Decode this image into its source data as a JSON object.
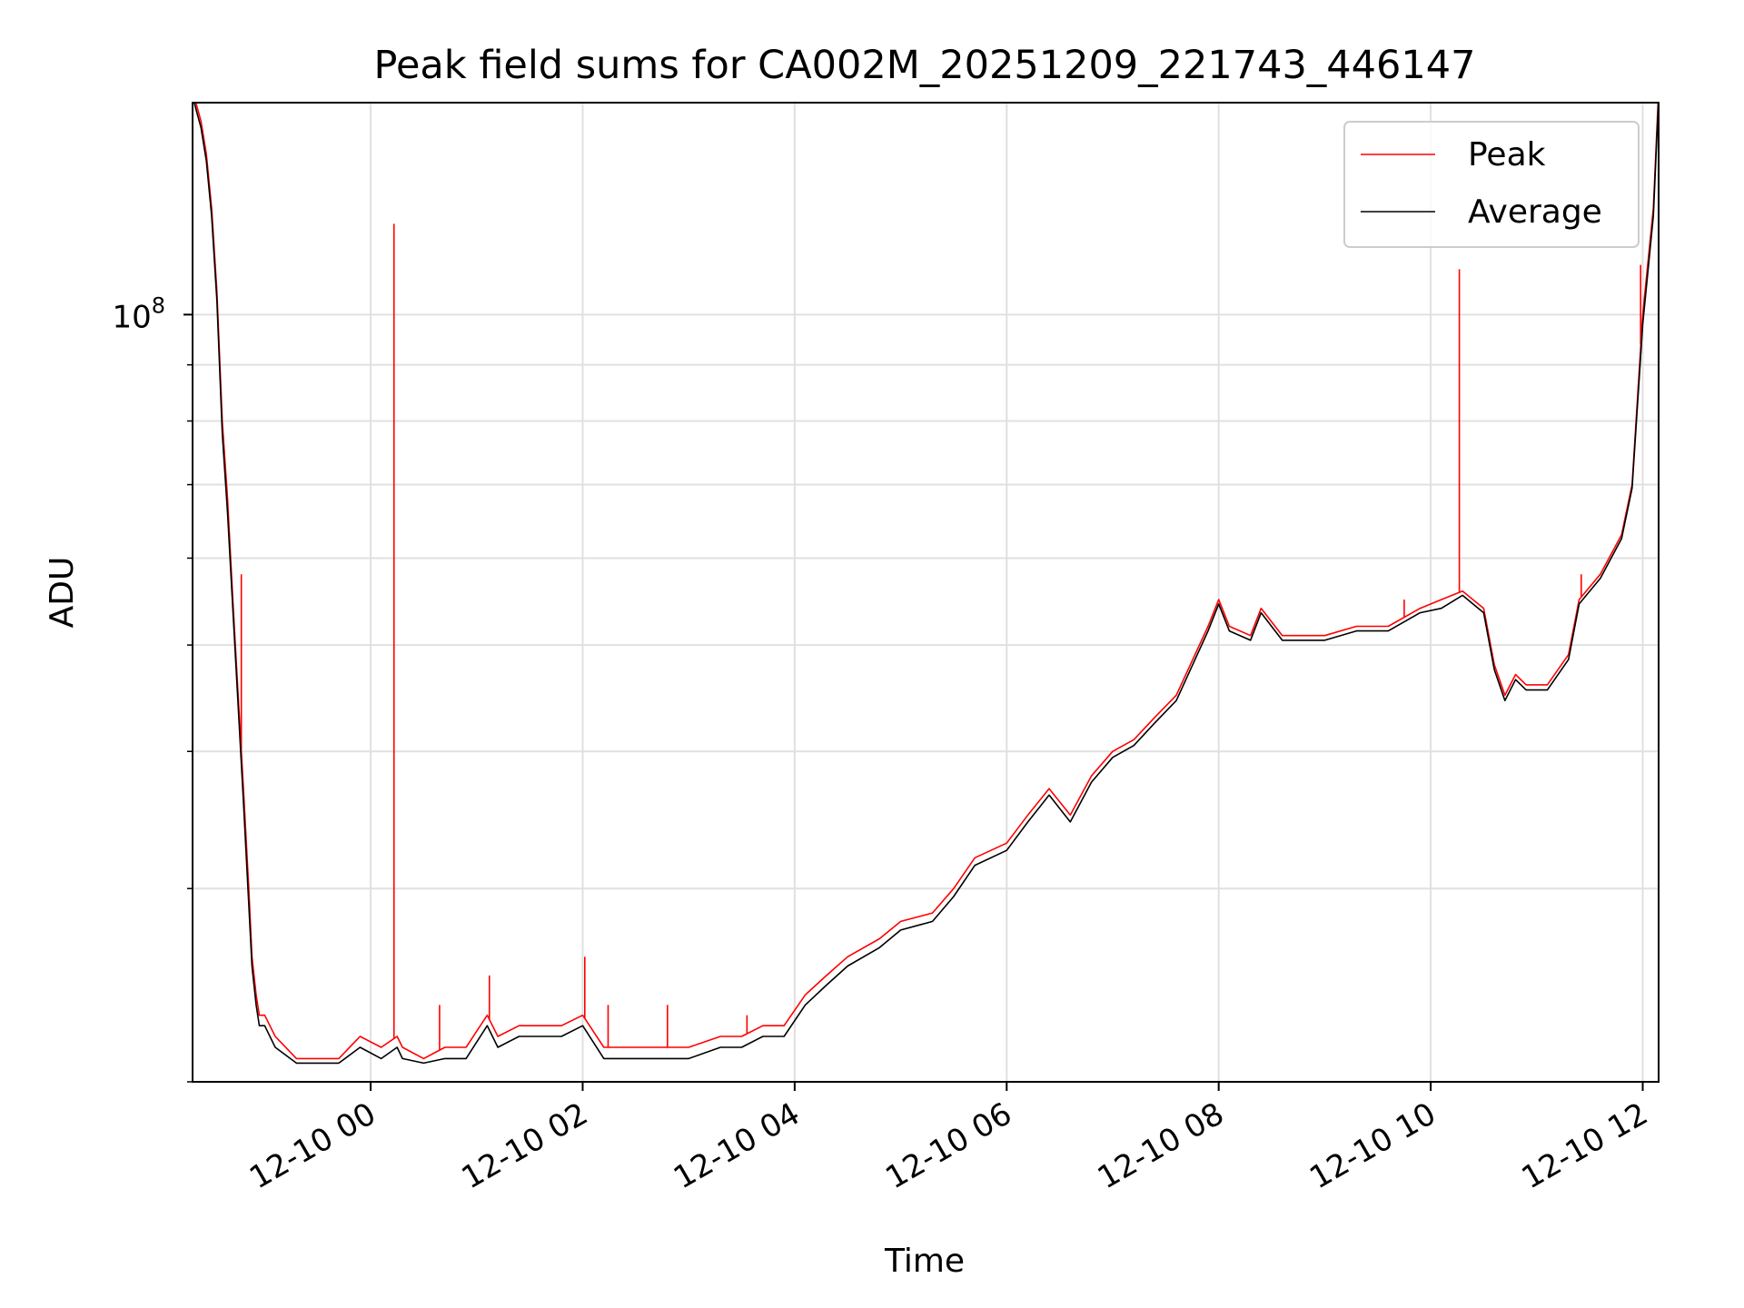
{
  "chart_data": {
    "type": "line",
    "title": "Peak field sums for CA002M_20251209_221743_446147",
    "xlabel": "Time",
    "ylabel": "ADU",
    "yscale": "log",
    "ylim": [
      20000000,
      156000000
    ],
    "xlim_hours": [
      -1.68,
      12.15
    ],
    "x_unit": "hours relative to 2025-12-10 00:00",
    "x_ticks": [
      {
        "hour": 0,
        "label": "12-10 00"
      },
      {
        "hour": 2,
        "label": "12-10 02"
      },
      {
        "hour": 4,
        "label": "12-10 04"
      },
      {
        "hour": 6,
        "label": "12-10 06"
      },
      {
        "hour": 8,
        "label": "12-10 08"
      },
      {
        "hour": 10,
        "label": "12-10 10"
      },
      {
        "hour": 12,
        "label": "12-10 12"
      }
    ],
    "y_major_ticks": [
      {
        "value": 100000000,
        "base": "10",
        "exp": "8"
      }
    ],
    "y_minor_ticks": [
      20000000,
      30000000,
      40000000,
      50000000,
      60000000,
      70000000,
      80000000,
      90000000
    ],
    "grid": true,
    "legend_position": "top-right",
    "series": [
      {
        "name": "Peak",
        "color": "#ff0000",
        "x": [
          -1.68,
          -1.6,
          -1.55,
          -1.5,
          -1.45,
          -1.4,
          -1.35,
          -1.3,
          -1.25,
          -1.2,
          -1.15,
          -1.12,
          -1.08,
          -1.05,
          -1.0,
          -0.9,
          -0.7,
          -0.5,
          -0.3,
          -0.1,
          0.1,
          0.25,
          0.3,
          0.5,
          0.7,
          0.9,
          1.1,
          1.2,
          1.4,
          1.6,
          1.8,
          2.0,
          2.2,
          2.5,
          2.8,
          3.0,
          3.3,
          3.5,
          3.7,
          3.9,
          4.1,
          4.3,
          4.5,
          4.8,
          5.0,
          5.3,
          5.5,
          5.7,
          6.0,
          6.2,
          6.4,
          6.6,
          6.8,
          7.0,
          7.2,
          7.4,
          7.6,
          7.9,
          8.0,
          8.1,
          8.3,
          8.4,
          8.6,
          8.8,
          9.0,
          9.3,
          9.6,
          9.9,
          10.1,
          10.3,
          10.5,
          10.6,
          10.7,
          10.8,
          10.9,
          11.1,
          11.3,
          11.4,
          11.6,
          11.8,
          11.9,
          12.0,
          12.1,
          12.15
        ],
        "y": [
          160000000,
          150000000,
          140000000,
          125000000,
          105000000,
          80000000,
          68000000,
          55000000,
          45000000,
          37000000,
          30000000,
          26000000,
          24000000,
          23000000,
          23000000,
          22000000,
          21000000,
          21000000,
          21000000,
          22000000,
          21500000,
          22000000,
          21500000,
          21000000,
          21500000,
          21500000,
          23000000,
          22000000,
          22500000,
          22500000,
          22500000,
          23000000,
          21500000,
          21500000,
          21500000,
          21500000,
          22000000,
          22000000,
          22500000,
          22500000,
          24000000,
          25000000,
          26000000,
          27000000,
          28000000,
          28500000,
          30000000,
          32000000,
          33000000,
          35000000,
          37000000,
          35000000,
          38000000,
          40000000,
          41000000,
          43000000,
          45000000,
          52000000,
          55000000,
          52000000,
          51000000,
          54000000,
          51000000,
          51000000,
          51000000,
          52000000,
          52000000,
          54000000,
          55000000,
          56000000,
          54000000,
          48000000,
          45000000,
          47000000,
          46000000,
          46000000,
          49000000,
          55000000,
          58000000,
          63000000,
          70000000,
          100000000,
          125000000,
          160000000
        ],
        "spikes": [
          {
            "x": -1.22,
            "y": 58000000
          },
          {
            "x": 0.22,
            "y": 121000000
          },
          {
            "x": 0.65,
            "y": 23500000
          },
          {
            "x": 1.12,
            "y": 25000000
          },
          {
            "x": 2.02,
            "y": 26000000
          },
          {
            "x": 2.24,
            "y": 23500000
          },
          {
            "x": 2.8,
            "y": 23500000
          },
          {
            "x": 3.55,
            "y": 23000000
          },
          {
            "x": 9.75,
            "y": 55000000
          },
          {
            "x": 10.27,
            "y": 110000000
          },
          {
            "x": 11.42,
            "y": 58000000
          },
          {
            "x": 11.98,
            "y": 111000000
          }
        ]
      },
      {
        "name": "Average",
        "color": "#000000",
        "x": [
          -1.68,
          -1.6,
          -1.55,
          -1.5,
          -1.45,
          -1.4,
          -1.35,
          -1.3,
          -1.25,
          -1.2,
          -1.15,
          -1.12,
          -1.08,
          -1.05,
          -1.0,
          -0.9,
          -0.7,
          -0.5,
          -0.3,
          -0.1,
          0.1,
          0.25,
          0.3,
          0.5,
          0.7,
          0.9,
          1.1,
          1.2,
          1.4,
          1.6,
          1.8,
          2.0,
          2.2,
          2.5,
          2.8,
          3.0,
          3.3,
          3.5,
          3.7,
          3.9,
          4.1,
          4.3,
          4.5,
          4.8,
          5.0,
          5.3,
          5.5,
          5.7,
          6.0,
          6.2,
          6.4,
          6.6,
          6.8,
          7.0,
          7.2,
          7.4,
          7.6,
          7.9,
          8.0,
          8.1,
          8.3,
          8.4,
          8.6,
          8.8,
          9.0,
          9.3,
          9.6,
          9.9,
          10.1,
          10.3,
          10.5,
          10.6,
          10.7,
          10.8,
          10.9,
          11.1,
          11.3,
          11.4,
          11.6,
          11.8,
          11.9,
          12.0,
          12.1,
          12.15
        ],
        "y": [
          158000000,
          148000000,
          138000000,
          123000000,
          103000000,
          78000000,
          66000000,
          54000000,
          44000000,
          36000000,
          29000000,
          25500000,
          23500000,
          22500000,
          22500000,
          21500000,
          20800000,
          20800000,
          20800000,
          21500000,
          21000000,
          21500000,
          21000000,
          20800000,
          21000000,
          21000000,
          22500000,
          21500000,
          22000000,
          22000000,
          22000000,
          22500000,
          21000000,
          21000000,
          21000000,
          21000000,
          21500000,
          21500000,
          22000000,
          22000000,
          23500000,
          24500000,
          25500000,
          26500000,
          27500000,
          28000000,
          29500000,
          31500000,
          32500000,
          34500000,
          36500000,
          34500000,
          37500000,
          39500000,
          40500000,
          42500000,
          44500000,
          51500000,
          54500000,
          51500000,
          50500000,
          53500000,
          50500000,
          50500000,
          50500000,
          51500000,
          51500000,
          53500000,
          54000000,
          55500000,
          53500000,
          47500000,
          44500000,
          46500000,
          45500000,
          45500000,
          48500000,
          54500000,
          57500000,
          62500000,
          69500000,
          98000000,
          123000000,
          158000000
        ]
      }
    ]
  }
}
